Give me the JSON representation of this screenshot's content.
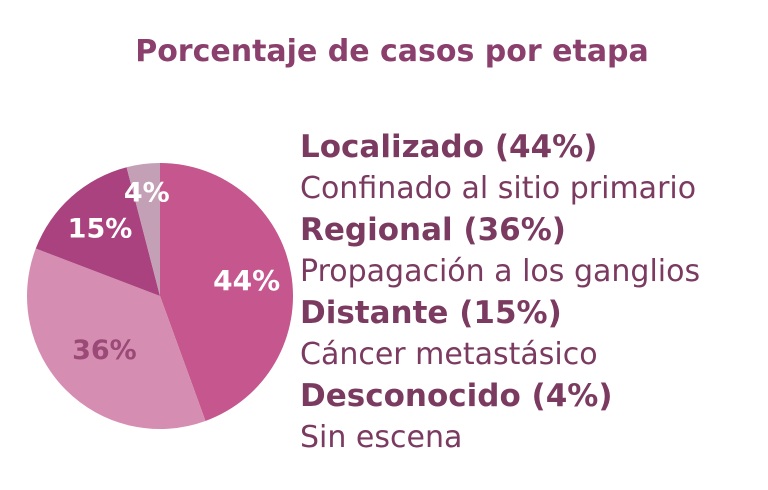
{
  "chart_data": {
    "type": "pie",
    "title": "Porcentaje de casos por etapa",
    "slices": [
      {
        "label": "44%",
        "value": 44,
        "color": "#c5568e",
        "label_color": "#ffffff",
        "legend_title": "Localizado (44%)",
        "legend_desc": "Confinado al sitio primario"
      },
      {
        "label": "36%",
        "value": 36,
        "color": "#d58eb2",
        "label_color": "#9b4a77",
        "legend_title": "Regional (36%)",
        "legend_desc": "Propagación a los ganglios"
      },
      {
        "label": "15%",
        "value": 15,
        "color": "#a9427f",
        "label_color": "#ffffff",
        "legend_title": "Distante (15%)",
        "legend_desc": "Cáncer metastásico"
      },
      {
        "label": "4%",
        "value": 4,
        "color": "#c4a0b6",
        "label_color": "#ffffff",
        "legend_title": "Desconocido (4%)",
        "legend_desc": "Sin escena"
      }
    ]
  }
}
